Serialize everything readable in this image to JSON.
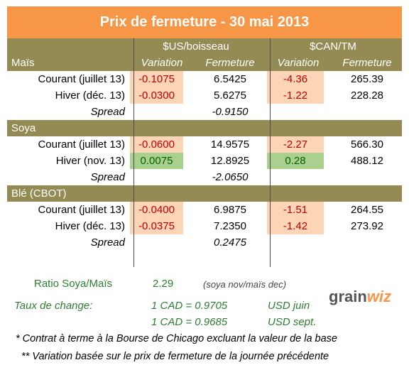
{
  "title": "Prix de fermeture - 30 mai 2013",
  "headers": {
    "usd": "$US/boisseau",
    "cad": "$CAN/TM",
    "variation": "Variation",
    "fermeture": "Fermeture"
  },
  "sections": [
    {
      "name": "Maïs",
      "rows": [
        {
          "label": "Courant (juillet 13)",
          "usd_var": "-0.1075",
          "usd_close": "6.5425",
          "cad_var": "-4.36",
          "cad_close": "265.39"
        },
        {
          "label": "Hiver (déc. 13)",
          "usd_var": "-0.0300",
          "usd_close": "5.6275",
          "cad_var": "-1.22",
          "cad_close": "228.28"
        }
      ],
      "spread_label": "Spread",
      "spread": "-0.9150"
    },
    {
      "name": "Soya",
      "rows": [
        {
          "label": "Courant (juillet 13)",
          "usd_var": "-0.0600",
          "usd_close": "14.9575",
          "cad_var": "-2.27",
          "cad_close": "566.30"
        },
        {
          "label": "Hiver (nov. 13)",
          "usd_var": "0.0075",
          "usd_close": "12.8925",
          "cad_var": "0.28",
          "cad_close": "488.12"
        }
      ],
      "spread_label": "Spread",
      "spread": "-2.0650"
    },
    {
      "name": "Blé (CBOT)",
      "rows": [
        {
          "label": "Courant (juillet 13)",
          "usd_var": "-0.0400",
          "usd_close": "6.9875",
          "cad_var": "-1.51",
          "cad_close": "264.55"
        },
        {
          "label": "Hiver (déc. 13)",
          "usd_var": "-0.0375",
          "usd_close": "7.2350",
          "cad_var": "-1.42",
          "cad_close": "273.92"
        }
      ],
      "spread_label": "Spread",
      "spread": "0.2475"
    }
  ],
  "ratio": {
    "label": "Ratio Soya/Maïs",
    "value": "2.29",
    "note": "(soya nov/maïs dec)"
  },
  "exchange": {
    "label": "Taux de change:",
    "line1": "1 CAD =  0.9705",
    "line1_unit": "USD juin",
    "line2": "1 CAD =  0.9685",
    "line2_unit": "USD sept."
  },
  "logo": {
    "part1": "grain",
    "part2": "wiz"
  },
  "notes": [
    "* Contrat à terme à la Bourse de Chicago excluant la valeur de la base",
    "** Variation basée sur le prix de fermeture de la journée précédente"
  ],
  "colors": {
    "header": "#f79646",
    "bar": "#948a54",
    "negative_fill": "#fbd5b5",
    "negative_text": "#c00000",
    "positive_fill": "#a9d08e",
    "positive_text": "#006100"
  }
}
